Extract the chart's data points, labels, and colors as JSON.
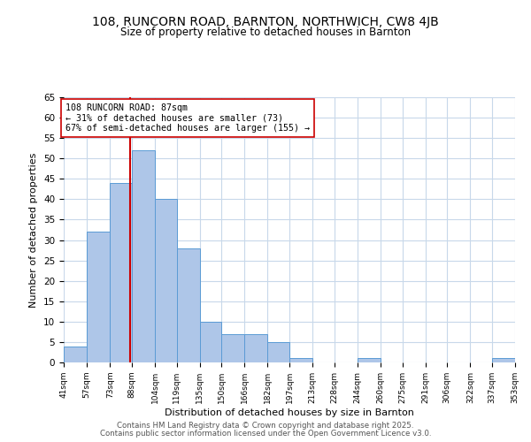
{
  "title": "108, RUNCORN ROAD, BARNTON, NORTHWICH, CW8 4JB",
  "subtitle": "Size of property relative to detached houses in Barnton",
  "xlabel": "Distribution of detached houses by size in Barnton",
  "ylabel": "Number of detached properties",
  "bin_edges": [
    41,
    57,
    73,
    88,
    104,
    119,
    135,
    150,
    166,
    182,
    197,
    213,
    228,
    244,
    260,
    275,
    291,
    306,
    322,
    337,
    353
  ],
  "counts": [
    4,
    32,
    44,
    52,
    40,
    28,
    10,
    7,
    7,
    5,
    1,
    0,
    0,
    1,
    0,
    0,
    0,
    0,
    0,
    1
  ],
  "bar_color": "#aec6e8",
  "bar_edgecolor": "#5b9bd5",
  "property_line_x": 87,
  "property_line_color": "#cc0000",
  "annotation_text": "108 RUNCORN ROAD: 87sqm\n← 31% of detached houses are smaller (73)\n67% of semi-detached houses are larger (155) →",
  "annotation_box_edgecolor": "#cc0000",
  "annotation_box_facecolor": "#ffffff",
  "ylim": [
    0,
    65
  ],
  "yticks": [
    0,
    5,
    10,
    15,
    20,
    25,
    30,
    35,
    40,
    45,
    50,
    55,
    60,
    65
  ],
  "tick_labels": [
    "41sqm",
    "57sqm",
    "73sqm",
    "88sqm",
    "104sqm",
    "119sqm",
    "135sqm",
    "150sqm",
    "166sqm",
    "182sqm",
    "197sqm",
    "213sqm",
    "228sqm",
    "244sqm",
    "260sqm",
    "275sqm",
    "291sqm",
    "306sqm",
    "322sqm",
    "337sqm",
    "353sqm"
  ],
  "footer_line1": "Contains HM Land Registry data © Crown copyright and database right 2025.",
  "footer_line2": "Contains public sector information licensed under the Open Government Licence v3.0.",
  "background_color": "#ffffff",
  "grid_color": "#c8d8ea"
}
